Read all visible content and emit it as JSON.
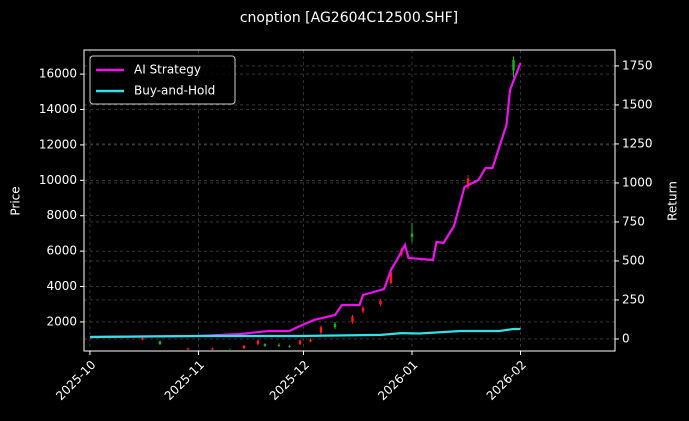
{
  "chart_data": {
    "type": "candlestick",
    "title": "cnoption [AG2604C12500.SHF]",
    "ylabel": "Price",
    "y2label": "Return",
    "grid": true,
    "legend": "upper left",
    "xlim": [
      -1.7,
      150
    ],
    "xticks": [
      {
        "value": 0,
        "label": "2025-10"
      },
      {
        "value": 31,
        "label": "2025-11"
      },
      {
        "value": 61,
        "label": "2025-12"
      },
      {
        "value": 92,
        "label": "2026-01"
      },
      {
        "value": 123,
        "label": "2026-02"
      }
    ],
    "ylim": [
      360,
      17360
    ],
    "yticks": [
      2000,
      4000,
      6000,
      8000,
      10000,
      12000,
      14000,
      16000
    ],
    "y2lim": [
      -77,
      1852
    ],
    "y2ticks": [
      0,
      250,
      500,
      750,
      1000,
      1250,
      1500,
      1750
    ],
    "up_color": "#ff1a1a",
    "down_color": "#14b814",
    "candles": {
      "x": [
        15,
        20,
        28,
        35,
        40,
        44,
        48,
        50,
        54,
        57,
        60,
        63,
        66,
        70,
        75,
        78,
        83,
        86,
        89,
        92,
        108,
        121
      ],
      "open": [
        1000,
        900,
        450,
        450,
        420,
        500,
        750,
        750,
        700,
        650,
        750,
        900,
        1400,
        1900,
        2000,
        2600,
        3000,
        4200,
        5800,
        7000,
        9600,
        16800
      ],
      "high": [
        1150,
        950,
        550,
        550,
        480,
        700,
        1000,
        800,
        800,
        700,
        1000,
        1100,
        1800,
        2000,
        2400,
        2900,
        3300,
        5100,
        6200,
        7600,
        10300,
        17000
      ],
      "low": [
        950,
        700,
        420,
        420,
        380,
        480,
        700,
        600,
        600,
        550,
        700,
        850,
        1300,
        1600,
        1900,
        2500,
        2900,
        4100,
        5700,
        6500,
        9500,
        15800
      ],
      "close": [
        1100,
        750,
        500,
        500,
        400,
        650,
        950,
        650,
        650,
        600,
        950,
        1000,
        1700,
        1700,
        2300,
        2800,
        3200,
        4800,
        6100,
        6800,
        10100,
        16200
      ]
    },
    "series": [
      {
        "name": "AI Strategy",
        "color": "#ee11ee",
        "axis": "y2",
        "x": [
          0,
          31,
          43,
          51,
          57,
          60,
          64,
          70,
          72,
          77,
          78,
          84,
          86,
          88,
          90,
          91,
          98,
          99,
          101,
          104,
          107,
          111,
          113,
          115,
          119,
          120,
          123
        ],
        "values": [
          13,
          19,
          32,
          51,
          51,
          83,
          122,
          154,
          218,
          218,
          282,
          320,
          442,
          519,
          603,
          519,
          506,
          622,
          615,
          724,
          974,
          1019,
          1096,
          1096,
          1372,
          1596,
          1769
        ]
      },
      {
        "name": "Buy-and-Hold",
        "color": "#33e0e6",
        "axis": "y2",
        "x": [
          0,
          31,
          60,
          83,
          89,
          94,
          106,
          117,
          121,
          123
        ],
        "values": [
          13,
          19,
          19,
          26,
          38,
          35,
          51,
          51,
          64,
          64
        ]
      }
    ]
  }
}
